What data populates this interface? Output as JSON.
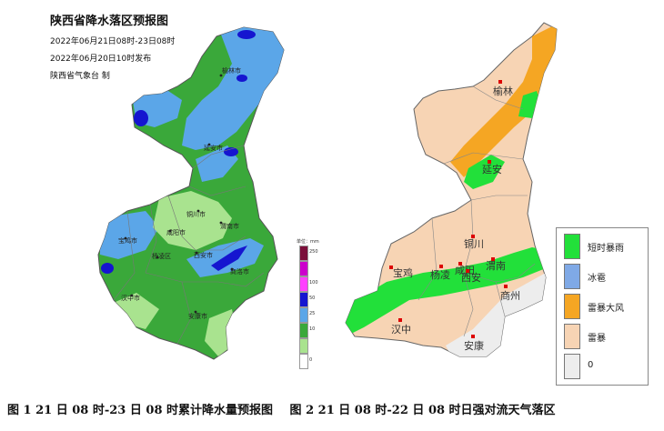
{
  "map1": {
    "title": "陕西省降水落区预报图",
    "period": "2022年06月21日08时-23日08时",
    "issued": "2022年06月20日10时发布",
    "producer": "陕西省气象台 制",
    "cities": [
      "榆林市",
      "延安市",
      "铜川市",
      "渭南市",
      "宝鸡市",
      "咸阳市",
      "杨凌区",
      "西安市",
      "商洛市",
      "汉中市",
      "安康市"
    ],
    "legend": {
      "unit": "单位：mm",
      "levels": [
        {
          "value": "250",
          "color": "#7b0f3a"
        },
        {
          "value": "",
          "color": "#cc00cc"
        },
        {
          "value": "100",
          "color": "#ff40ff"
        },
        {
          "value": "50",
          "color": "#1515d0"
        },
        {
          "value": "25",
          "color": "#5ba6e8"
        },
        {
          "value": "10",
          "color": "#3aa83a"
        },
        {
          "value": "",
          "color": "#a9e38f"
        },
        {
          "value": "0",
          "color": "#ffffff"
        }
      ]
    }
  },
  "map2": {
    "cities": [
      "榆林",
      "延安",
      "铜川",
      "渭南",
      "宝鸡",
      "杨凌",
      "咸阳",
      "西安",
      "商州",
      "汉中",
      "安康"
    ],
    "legend": [
      {
        "label": "短时暴雨",
        "color": "#22e03a"
      },
      {
        "label": "冰雹",
        "color": "#7fa9e6"
      },
      {
        "label": "雷暴大风",
        "color": "#f5a623"
      },
      {
        "label": "雷暴",
        "color": "#f7d4b4"
      },
      {
        "label": "0",
        "color": "#ededed"
      }
    ]
  },
  "captions": {
    "fig1": "图 1 21 日 08 时-23 日 08 时累计降水量预报图",
    "fig2": "图 2 21 日 08 时-22 日 08 时日强对流天气落区"
  }
}
